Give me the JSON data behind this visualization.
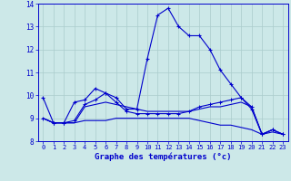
{
  "xlabel": "Graphe des températures (°c)",
  "bg_color": "#cce8e8",
  "grid_color": "#aacccc",
  "line_color": "#0000cc",
  "xlim": [
    -0.5,
    23.5
  ],
  "ylim": [
    8,
    14
  ],
  "yticks": [
    8,
    9,
    10,
    11,
    12,
    13,
    14
  ],
  "xticks": [
    0,
    1,
    2,
    3,
    4,
    5,
    6,
    7,
    8,
    9,
    10,
    11,
    12,
    13,
    14,
    15,
    16,
    17,
    18,
    19,
    20,
    21,
    22,
    23
  ],
  "series1_x": [
    0,
    1,
    2,
    3,
    4,
    5,
    6,
    7,
    8,
    9,
    10,
    11,
    12,
    13,
    14,
    15,
    16,
    17,
    18,
    19,
    20,
    21,
    22,
    23
  ],
  "series1_y": [
    9.9,
    8.8,
    8.8,
    9.7,
    9.8,
    10.3,
    10.1,
    9.9,
    9.4,
    9.4,
    11.6,
    13.5,
    13.8,
    13.0,
    12.6,
    12.6,
    12.0,
    11.1,
    10.5,
    9.9,
    9.4,
    8.3,
    8.5,
    8.3
  ],
  "series2_x": [
    0,
    1,
    2,
    3,
    4,
    5,
    6,
    7,
    8,
    9,
    10,
    11,
    12,
    13,
    14,
    15,
    16,
    17,
    18,
    19,
    20,
    21,
    22,
    23
  ],
  "series2_y": [
    9.0,
    8.8,
    8.8,
    8.8,
    9.5,
    9.6,
    9.7,
    9.6,
    9.5,
    9.4,
    9.3,
    9.3,
    9.3,
    9.3,
    9.3,
    9.4,
    9.5,
    9.5,
    9.6,
    9.7,
    9.5,
    8.3,
    8.5,
    8.3
  ],
  "series3_x": [
    0,
    1,
    2,
    3,
    4,
    5,
    6,
    7,
    8,
    9,
    10,
    11,
    12,
    13,
    14,
    15,
    16,
    17,
    18,
    19,
    20,
    21,
    22,
    23
  ],
  "series3_y": [
    9.0,
    8.8,
    8.8,
    8.8,
    8.9,
    8.9,
    8.9,
    9.0,
    9.0,
    9.0,
    9.0,
    9.0,
    9.0,
    9.0,
    9.0,
    8.9,
    8.8,
    8.7,
    8.7,
    8.6,
    8.5,
    8.3,
    8.4,
    8.3
  ],
  "series4_x": [
    0,
    1,
    2,
    3,
    4,
    5,
    6,
    7,
    8,
    9,
    10,
    11,
    12,
    13,
    14,
    15,
    16,
    17,
    18,
    19,
    20,
    21,
    22,
    23
  ],
  "series4_y": [
    9.0,
    8.8,
    8.8,
    8.9,
    9.6,
    9.8,
    10.1,
    9.7,
    9.3,
    9.2,
    9.2,
    9.2,
    9.2,
    9.2,
    9.3,
    9.5,
    9.6,
    9.7,
    9.8,
    9.9,
    9.5,
    8.3,
    8.5,
    8.3
  ]
}
